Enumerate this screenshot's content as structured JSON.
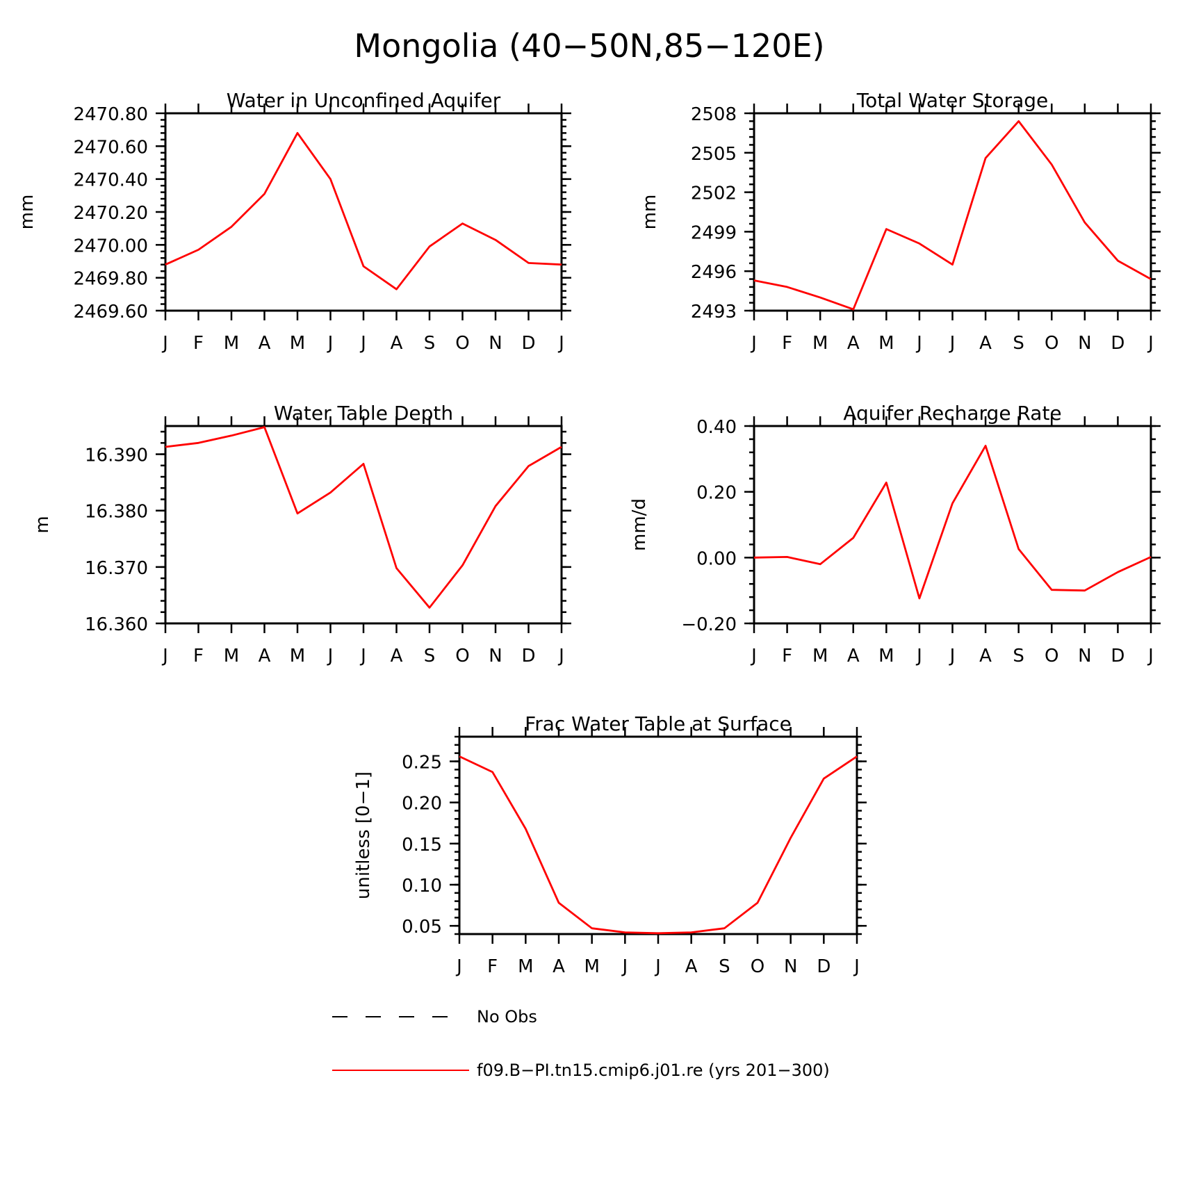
{
  "figure": {
    "title": "Mongolia (40−50N,85−120E)"
  },
  "legend": {
    "obs_label": "No Obs",
    "model_label": "f09.B−PI.tn15.cmip6.j01.re (yrs 201−300)",
    "model_color": "#ff0000"
  },
  "chart_data": [
    {
      "type": "line",
      "title": "Water in Unconfined Aquifer",
      "ylabel": "mm",
      "categories": [
        "J",
        "F",
        "M",
        "A",
        "M",
        "J",
        "J",
        "A",
        "S",
        "O",
        "N",
        "D",
        "J"
      ],
      "ylim": [
        2469.6,
        2470.8
      ],
      "yticks": [
        2469.6,
        2469.8,
        2470.0,
        2470.2,
        2470.4,
        2470.6,
        2470.8
      ],
      "ytick_labels": [
        "2469.60",
        "2469.80",
        "2470.00",
        "2470.20",
        "2470.40",
        "2470.60",
        "2470.80"
      ],
      "series": [
        {
          "values": [
            2469.88,
            2469.97,
            2470.11,
            2470.31,
            2470.68,
            2470.4,
            2469.87,
            2469.73,
            2469.99,
            2470.13,
            2470.03,
            2469.89,
            2469.88
          ]
        }
      ]
    },
    {
      "type": "line",
      "title": "Total Water Storage",
      "ylabel": "mm",
      "categories": [
        "J",
        "F",
        "M",
        "A",
        "M",
        "J",
        "J",
        "A",
        "S",
        "O",
        "N",
        "D",
        "J"
      ],
      "ylim": [
        2493,
        2508
      ],
      "yticks": [
        2493,
        2496,
        2499,
        2502,
        2505,
        2508
      ],
      "ytick_labels": [
        "2493",
        "2496",
        "2499",
        "2502",
        "2505",
        "2508"
      ],
      "series": [
        {
          "values": [
            2495.3,
            2494.8,
            2494.0,
            2493.1,
            2499.2,
            2498.1,
            2496.5,
            2504.6,
            2507.4,
            2504.1,
            2499.7,
            2496.8,
            2495.4
          ]
        }
      ]
    },
    {
      "type": "line",
      "title": "Water Table Depth",
      "ylabel": "m",
      "categories": [
        "J",
        "F",
        "M",
        "A",
        "M",
        "J",
        "J",
        "A",
        "S",
        "O",
        "N",
        "D",
        "J"
      ],
      "ylim": [
        16.36,
        16.395
      ],
      "yticks": [
        16.36,
        16.37,
        16.38,
        16.39
      ],
      "ytick_labels": [
        "16.360",
        "16.370",
        "16.380",
        "16.390"
      ],
      "series": [
        {
          "values": [
            16.3913,
            16.392,
            16.3933,
            16.3948,
            16.3795,
            16.3832,
            16.3883,
            16.3698,
            16.3628,
            16.3703,
            16.3808,
            16.3879,
            16.3913
          ]
        }
      ]
    },
    {
      "type": "line",
      "title": "Aquifer Recharge Rate",
      "ylabel": "mm/d",
      "categories": [
        "J",
        "F",
        "M",
        "A",
        "M",
        "J",
        "J",
        "A",
        "S",
        "O",
        "N",
        "D",
        "J"
      ],
      "ylim": [
        -0.2,
        0.4
      ],
      "yticks": [
        -0.2,
        0.0,
        0.2,
        0.4
      ],
      "ytick_labels": [
        "−0.20",
        "0.00",
        "0.20",
        "0.40"
      ],
      "series": [
        {
          "values": [
            0.0,
            0.002,
            -0.02,
            0.06,
            0.228,
            -0.124,
            0.165,
            0.34,
            0.026,
            -0.098,
            -0.1,
            -0.044,
            0.002
          ]
        }
      ]
    },
    {
      "type": "line",
      "title": "Frac Water Table at Surface",
      "ylabel": "unitless [0−1]",
      "categories": [
        "J",
        "F",
        "M",
        "A",
        "M",
        "J",
        "J",
        "A",
        "S",
        "O",
        "N",
        "D",
        "J"
      ],
      "ylim": [
        0.04,
        0.28
      ],
      "yticks": [
        0.05,
        0.1,
        0.15,
        0.2,
        0.25
      ],
      "ytick_labels": [
        "0.05",
        "0.10",
        "0.15",
        "0.20",
        "0.25"
      ],
      "series": [
        {
          "values": [
            0.256,
            0.237,
            0.168,
            0.078,
            0.047,
            0.042,
            0.041,
            0.042,
            0.047,
            0.078,
            0.157,
            0.229,
            0.256
          ]
        }
      ]
    }
  ]
}
